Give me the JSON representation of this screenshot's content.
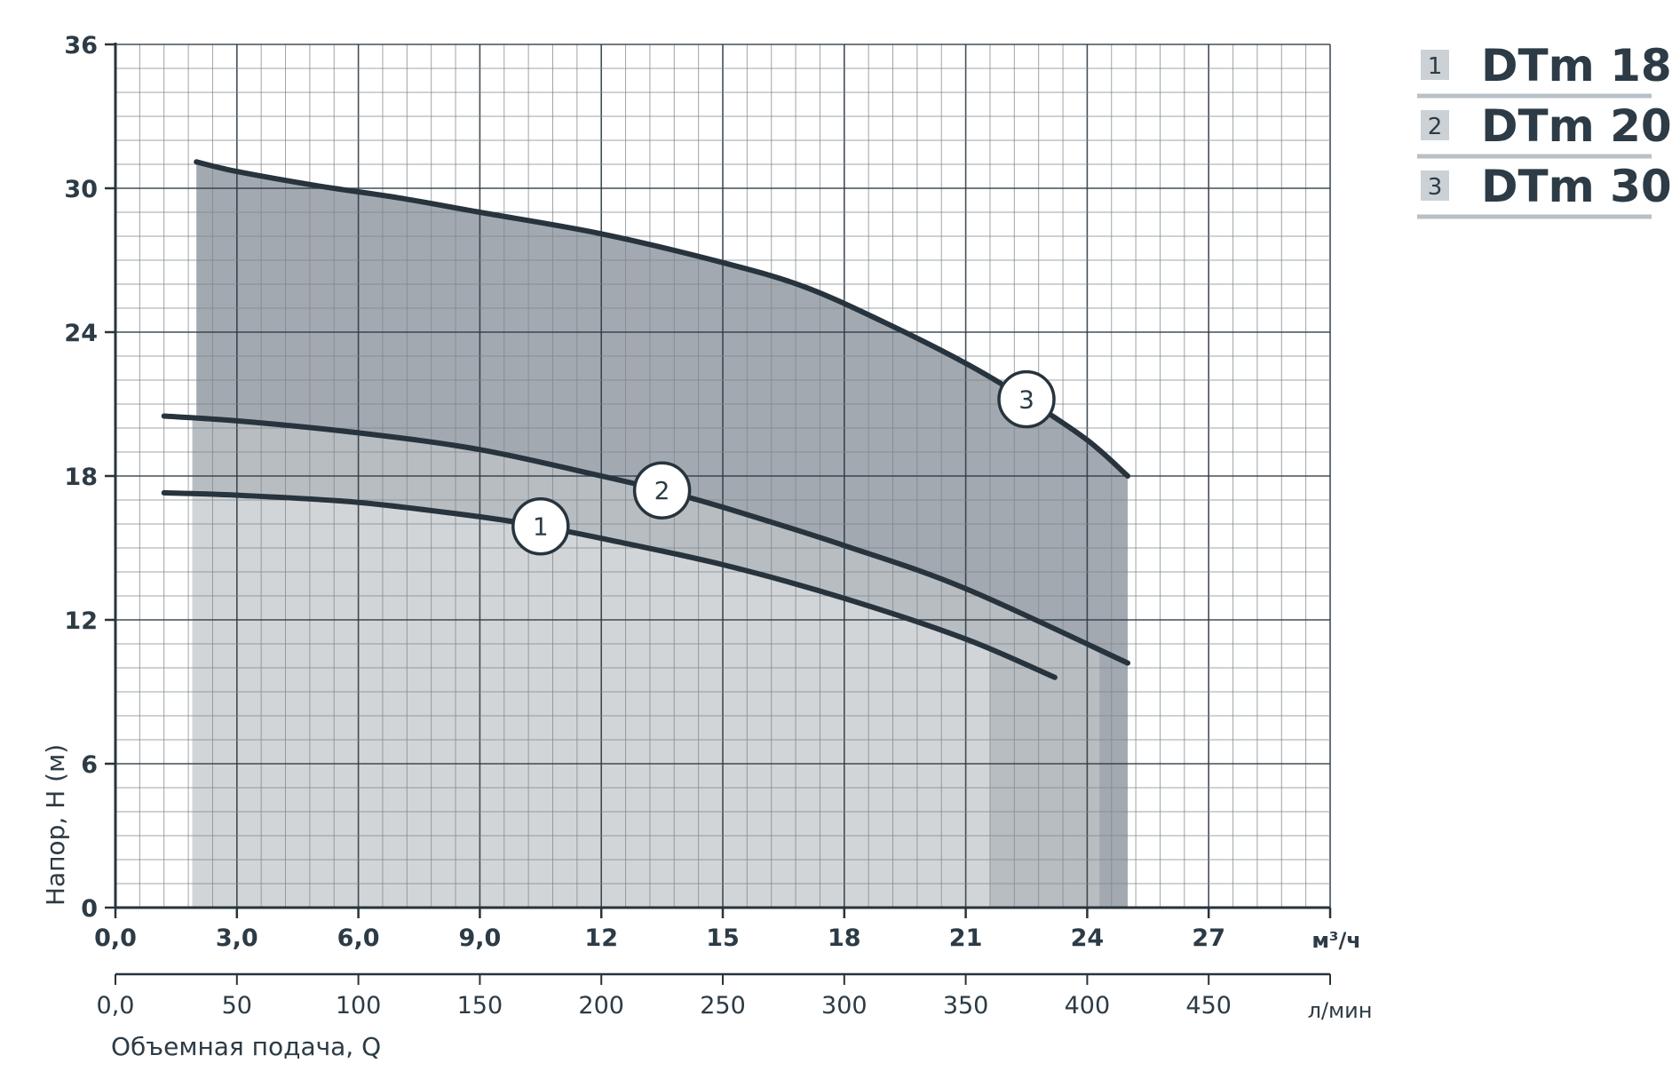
{
  "chart_data": {
    "type": "line",
    "title": "",
    "xlabel": "Объемная подача, Q",
    "ylabel": "Напор, H (м)",
    "x_unit_primary": "м³/ч",
    "x_unit_secondary": "л/мин",
    "xlim": [
      0,
      30
    ],
    "ylim": [
      0,
      36
    ],
    "x_ticks_primary": [
      "0,0",
      "3,0",
      "6,0",
      "9,0",
      "12",
      "15",
      "18",
      "21",
      "24",
      "27"
    ],
    "x_ticks_primary_values": [
      0,
      3,
      6,
      9,
      12,
      15,
      18,
      21,
      24,
      27
    ],
    "x_ticks_secondary": [
      "0,0",
      "50",
      "100",
      "150",
      "200",
      "250",
      "300",
      "350",
      "400",
      "450"
    ],
    "x_ticks_secondary_values": [
      0,
      3,
      6,
      9,
      12,
      15,
      18,
      21,
      24,
      27
    ],
    "y_ticks": [
      "0",
      "6",
      "12",
      "18",
      "24",
      "30",
      "36"
    ],
    "y_ticks_values": [
      0,
      6,
      12,
      18,
      24,
      30,
      36
    ],
    "grid": true,
    "legend_position": "top-right",
    "series": [
      {
        "marker": "1",
        "name": "DTm 18",
        "marker_x": 10.5,
        "x": [
          1.2,
          3,
          6,
          9,
          10.5,
          12,
          15,
          18,
          21,
          23.2
        ],
        "y": [
          17.3,
          17.2,
          16.9,
          16.3,
          15.9,
          15.4,
          14.3,
          12.9,
          11.2,
          9.6
        ],
        "fill_from": 1.9,
        "fill_to": 21.6,
        "fill_color": "#d2d5d8"
      },
      {
        "marker": "2",
        "name": "DTm 20",
        "marker_x": 13.5,
        "x": [
          1.2,
          3,
          6,
          9,
          12,
          13.5,
          15,
          18,
          21,
          25
        ],
        "y": [
          20.5,
          20.3,
          19.8,
          19.1,
          18.0,
          17.4,
          16.7,
          15.1,
          13.3,
          10.2
        ],
        "fill_from": 1.9,
        "fill_to": 24.3,
        "fill_color": "#b8bdc2"
      },
      {
        "marker": "3",
        "name": "DTm 30",
        "marker_x": 22.5,
        "x": [
          2,
          3,
          5,
          7,
          9,
          12,
          15,
          17,
          19,
          21,
          22.5,
          24,
          25
        ],
        "y": [
          31.1,
          30.7,
          30.1,
          29.6,
          29.0,
          28.1,
          26.9,
          25.9,
          24.4,
          22.7,
          21.2,
          19.5,
          18.0
        ],
        "fill_from": 2.0,
        "fill_to": 25.0,
        "fill_color": "#a3a9b0"
      }
    ]
  },
  "legend": {
    "items": [
      {
        "num": "1",
        "label": "DTm 18"
      },
      {
        "num": "2",
        "label": "DTm 20"
      },
      {
        "num": "3",
        "label": "DTm 30"
      }
    ]
  },
  "colors": {
    "line": "#27343d",
    "grid": "#2f3b44",
    "grid_minor": "#7d868d",
    "text": "#2c3b45",
    "legend_box": "#ccd1d6",
    "legend_rule": "#b9c0c6"
  }
}
